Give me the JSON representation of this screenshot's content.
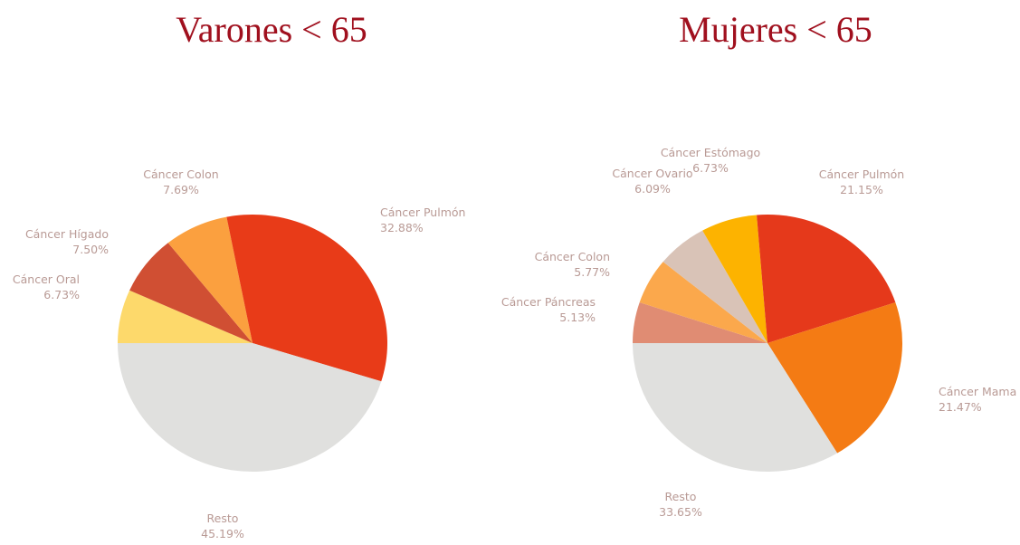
{
  "chart_data": [
    {
      "type": "pie",
      "title": "Varones < 65",
      "categories": [
        "Cáncer Oral",
        "Cáncer Hígado",
        "Cáncer Colon",
        "Cáncer Pulmón",
        "Resto"
      ],
      "values": [
        6.73,
        7.5,
        7.69,
        32.88,
        45.19
      ],
      "value_labels": [
        "6.73%",
        "7.50%",
        "7.69%",
        "32.88%",
        "45.19%"
      ],
      "colors": [
        "#fdd96b",
        "#d04f33",
        "#fba03f",
        "#e83b18",
        "#e0e0de"
      ]
    },
    {
      "type": "pie",
      "title": "Mujeres < 65",
      "categories": [
        "Cáncer Páncreas",
        "Cáncer Colon",
        "Cáncer Ovario",
        "Cáncer Estómago",
        "Cáncer Pulmón",
        "Cáncer Mama",
        "Resto"
      ],
      "values": [
        5.13,
        5.77,
        6.09,
        6.73,
        21.15,
        21.47,
        33.65
      ],
      "value_labels": [
        "5.13%",
        "5.77%",
        "6.09%",
        "6.73%",
        "21.15%",
        "21.47%",
        "33.65%"
      ],
      "colors": [
        "#e08c73",
        "#fba84c",
        "#d9c3b7",
        "#fdb300",
        "#e5391b",
        "#f47b14",
        "#e0e0de"
      ]
    }
  ]
}
